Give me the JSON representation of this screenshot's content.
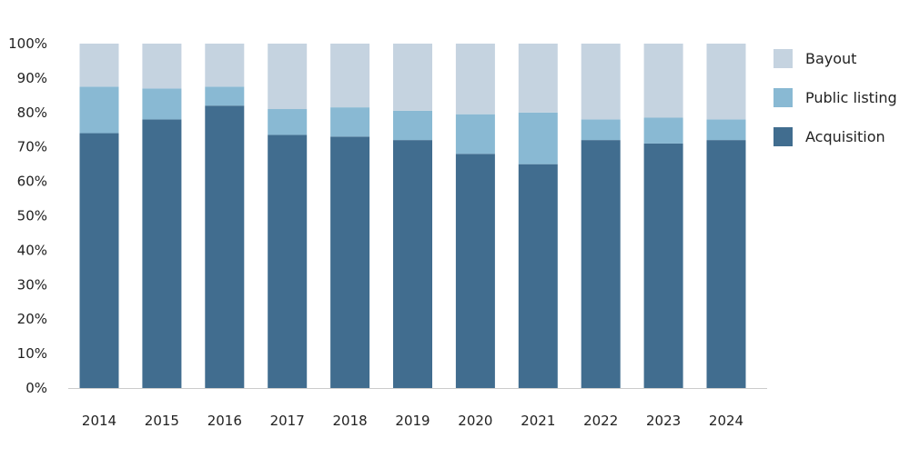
{
  "chart_data": {
    "type": "bar",
    "stacked": true,
    "title": "",
    "xlabel": "",
    "ylabel": "",
    "ylim": [
      0,
      100
    ],
    "y_ticks": [
      0,
      10,
      20,
      30,
      40,
      50,
      60,
      70,
      80,
      90,
      100
    ],
    "y_tick_labels": [
      "0%",
      "10%",
      "20%",
      "30%",
      "40%",
      "50%",
      "60%",
      "70%",
      "80%",
      "90%",
      "100%"
    ],
    "grid": false,
    "legend_position": "right",
    "categories": [
      "2014",
      "2015",
      "2016",
      "2017",
      "2018",
      "2019",
      "2020",
      "2021",
      "2022",
      "2023",
      "2024"
    ],
    "series": [
      {
        "name": "Acquisition",
        "color": "#416d8f",
        "values": [
          74,
          78,
          82,
          73.5,
          73,
          72,
          68,
          65,
          72,
          71,
          72
        ]
      },
      {
        "name": "Public listing",
        "color": "#89b9d3",
        "values": [
          13.5,
          9,
          5.5,
          7.5,
          8.5,
          8.5,
          11.5,
          15,
          6,
          7.5,
          6
        ]
      },
      {
        "name": "Bayout",
        "color": "#c5d3e0",
        "values": [
          12.5,
          13,
          12.5,
          19,
          18.5,
          19.5,
          20.5,
          20,
          22,
          21.5,
          22
        ]
      }
    ],
    "legend_order": [
      "Bayout",
      "Public listing",
      "Acquisition"
    ],
    "axis_color": "#cccccc"
  }
}
